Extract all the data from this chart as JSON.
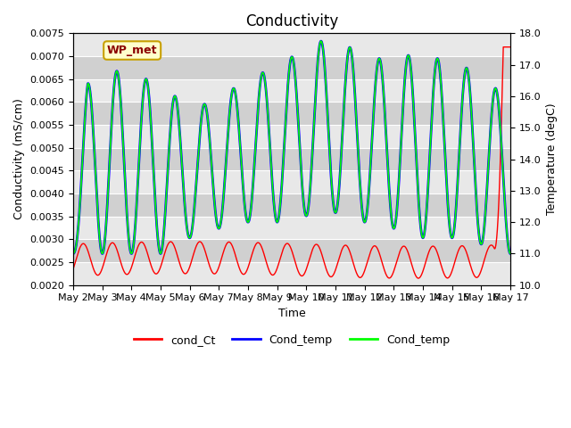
{
  "title": "Conductivity",
  "xlabel": "Time",
  "ylabel_left": "Conductivity (mS/cm)",
  "ylabel_right": "Temperature (degC)",
  "xlim_days": [
    0,
    15
  ],
  "ylim_left": [
    0.002,
    0.0075
  ],
  "ylim_right": [
    10.0,
    18.0
  ],
  "xtick_labels": [
    "May 2",
    "May 3",
    "May 4",
    "May 5",
    "May 6",
    "May 7",
    "May 8",
    "May 9",
    "May 10",
    "May 11",
    "May 12",
    "May 13",
    "May 14",
    "May 15",
    "May 16",
    "May 17"
  ],
  "legend_entries": [
    "cond_Ct",
    "Cond_temp",
    "Cond_temp"
  ],
  "legend_colors": [
    "red",
    "blue",
    "lime"
  ],
  "background_color": "#d8d8d8",
  "band_color_light": "#e8e8e8",
  "band_color_dark": "#d0d0d0",
  "grid_color": "#ffffff",
  "title_fontsize": 12,
  "axis_fontsize": 9,
  "tick_fontsize": 8
}
